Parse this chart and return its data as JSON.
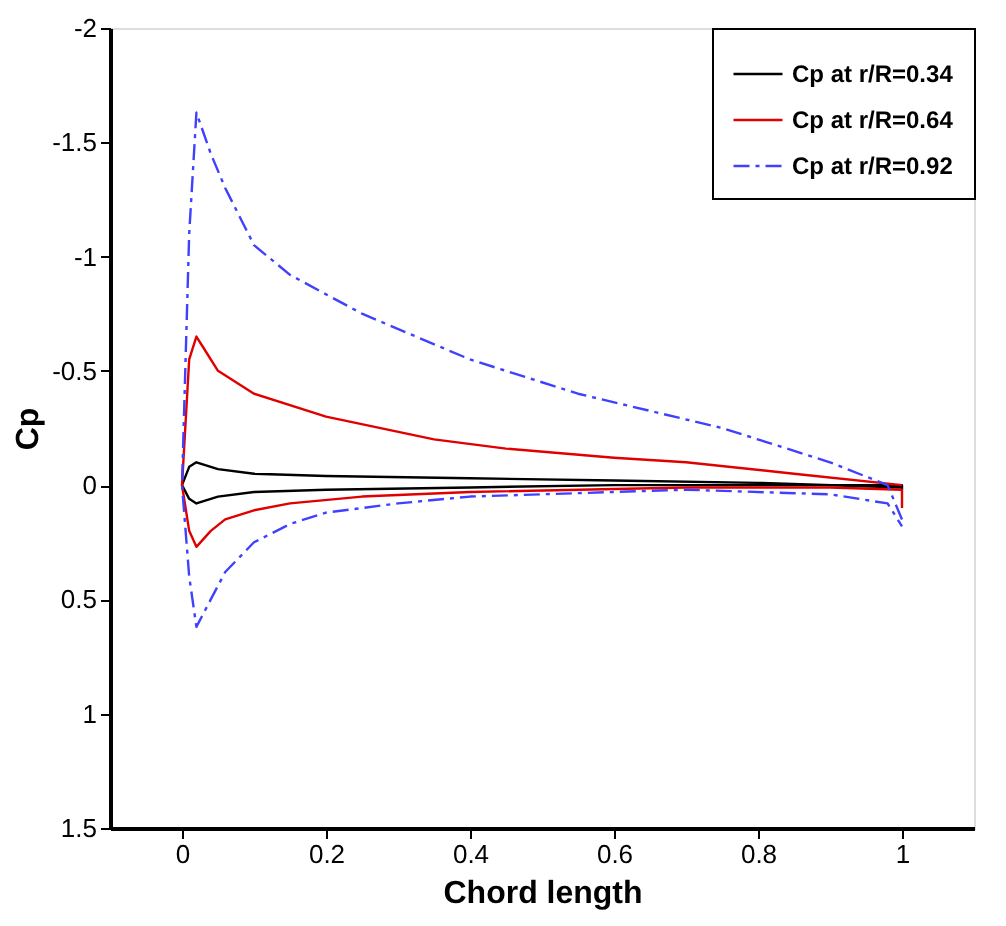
{
  "chart_data": {
    "type": "line",
    "xlabel": "Chord length",
    "ylabel": "Cp",
    "xlim": [
      -0.1,
      1.1
    ],
    "xticks": [
      0,
      0.2,
      0.4,
      0.6,
      0.8,
      1
    ],
    "ylim": [
      1.5,
      -2
    ],
    "yticks": [
      -2,
      -1.5,
      -1,
      -0.5,
      0,
      0.5,
      1,
      1.5
    ],
    "grid": false,
    "legend": "top right",
    "marker": "none",
    "series": [
      {
        "name": "Cp at r/R=0.34",
        "color": "#000000",
        "line_style": "solid",
        "x": [
          1,
          0.8,
          0.6,
          0.4,
          0.2,
          0.1,
          0.05,
          0.02,
          0.01,
          0,
          0.01,
          0.02,
          0.05,
          0.1,
          0.2,
          0.4,
          0.6,
          0.8,
          1,
          1
        ],
        "values": [
          0.01,
          -0.01,
          -0.02,
          -0.03,
          -0.04,
          -0.05,
          -0.07,
          -0.1,
          -0.08,
          0,
          0.06,
          0.08,
          0.05,
          0.03,
          0.02,
          0.01,
          0,
          0,
          0,
          0.02
        ]
      },
      {
        "name": "Cp at r/R=0.64",
        "color": "#e00000",
        "line_style": "solid",
        "x": [
          1,
          0.85,
          0.7,
          0.6,
          0.45,
          0.35,
          0.2,
          0.1,
          0.05,
          0.03,
          0.02,
          0.01,
          0,
          0.01,
          0.02,
          0.04,
          0.06,
          0.1,
          0.15,
          0.25,
          0.4,
          0.7,
          0.9,
          1,
          1
        ],
        "values": [
          0,
          -0.05,
          -0.1,
          -0.12,
          -0.16,
          -0.2,
          -0.3,
          -0.4,
          -0.5,
          -0.6,
          -0.65,
          -0.55,
          0,
          0.2,
          0.27,
          0.2,
          0.15,
          0.11,
          0.08,
          0.05,
          0.03,
          0.01,
          0.01,
          0.02,
          0.1
        ]
      },
      {
        "name": "Cp at r/R=0.92",
        "color": "#4040ff",
        "line_style": "dashdot",
        "x": [
          1,
          0.98,
          0.9,
          0.75,
          0.55,
          0.4,
          0.25,
          0.15,
          0.1,
          0.06,
          0.04,
          0.02,
          0.01,
          0,
          0.01,
          0.02,
          0.04,
          0.06,
          0.1,
          0.15,
          0.2,
          0.3,
          0.4,
          0.7,
          0.9,
          0.98,
          1
        ],
        "values": [
          0.15,
          0,
          -0.1,
          -0.25,
          -0.4,
          -0.55,
          -0.75,
          -0.92,
          -1.05,
          -1.3,
          -1.45,
          -1.63,
          -1.1,
          0,
          0.4,
          0.62,
          0.5,
          0.38,
          0.25,
          0.17,
          0.12,
          0.08,
          0.05,
          0.02,
          0.04,
          0.08,
          0.18
        ]
      }
    ]
  }
}
